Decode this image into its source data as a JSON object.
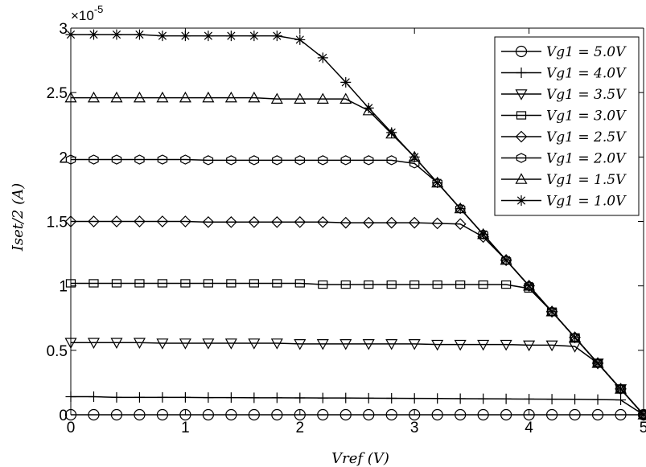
{
  "chart_data": {
    "type": "line",
    "title": "",
    "xlabel": "Vref (V)",
    "ylabel": "Iset/2 (A)",
    "y_multiplier_base": "×10",
    "y_multiplier_exp": "-5",
    "xlim": [
      0,
      5
    ],
    "ylim": [
      0,
      3
    ],
    "xticks": [
      "0",
      "1",
      "2",
      "3",
      "4",
      "5"
    ],
    "yticks": [
      "0",
      "0.5",
      "1",
      "1.5",
      "2",
      "2.5",
      "3"
    ],
    "grid": false,
    "legend_position": "top-right",
    "line_color": "#000000",
    "series": [
      {
        "name": "Vg1 = 5.0V",
        "marker": "circle",
        "x": [
          0,
          0.2,
          0.4,
          0.6,
          0.8,
          1.0,
          1.2,
          1.4,
          1.6,
          1.8,
          2.0,
          2.2,
          2.4,
          2.6,
          2.8,
          3.0,
          3.2,
          3.4,
          3.6,
          3.8,
          4.0,
          4.2,
          4.4,
          4.6,
          4.8,
          5.0
        ],
        "y": [
          0,
          0,
          0,
          0,
          0,
          0,
          0,
          0,
          0,
          0,
          0,
          0,
          0,
          0,
          0,
          0,
          0,
          0,
          0,
          0,
          0,
          0,
          0,
          0,
          0,
          0
        ]
      },
      {
        "name": "Vg1 = 4.0V",
        "marker": "plus",
        "x": [
          0,
          0.2,
          0.4,
          0.6,
          0.8,
          1.0,
          1.2,
          1.4,
          1.6,
          1.8,
          2.0,
          2.2,
          2.4,
          2.6,
          2.8,
          3.0,
          3.2,
          3.4,
          3.6,
          3.8,
          4.0,
          4.2,
          4.4,
          4.6,
          4.8,
          5.0
        ],
        "y": [
          0.14,
          0.14,
          0.135,
          0.135,
          0.135,
          0.135,
          0.133,
          0.133,
          0.132,
          0.132,
          0.131,
          0.13,
          0.13,
          0.129,
          0.128,
          0.127,
          0.126,
          0.125,
          0.124,
          0.123,
          0.122,
          0.121,
          0.12,
          0.118,
          0.115,
          0
        ]
      },
      {
        "name": "Vg1 = 3.5V",
        "marker": "triangle-down",
        "x": [
          0,
          0.2,
          0.4,
          0.6,
          0.8,
          1.0,
          1.2,
          1.4,
          1.6,
          1.8,
          2.0,
          2.2,
          2.4,
          2.6,
          2.8,
          3.0,
          3.2,
          3.4,
          3.6,
          3.8,
          4.0,
          4.2,
          4.4,
          4.6,
          4.8,
          5.0
        ],
        "y": [
          0.56,
          0.56,
          0.56,
          0.56,
          0.555,
          0.555,
          0.555,
          0.555,
          0.555,
          0.555,
          0.55,
          0.55,
          0.55,
          0.55,
          0.55,
          0.55,
          0.545,
          0.545,
          0.545,
          0.545,
          0.54,
          0.54,
          0.53,
          0.4,
          0.2,
          0
        ]
      },
      {
        "name": "Vg1 = 3.0V",
        "marker": "square",
        "x": [
          0,
          0.2,
          0.4,
          0.6,
          0.8,
          1.0,
          1.2,
          1.4,
          1.6,
          1.8,
          2.0,
          2.2,
          2.4,
          2.6,
          2.8,
          3.0,
          3.2,
          3.4,
          3.6,
          3.8,
          4.0,
          4.2,
          4.4,
          4.6,
          4.8,
          5.0
        ],
        "y": [
          1.02,
          1.02,
          1.02,
          1.02,
          1.02,
          1.02,
          1.02,
          1.02,
          1.02,
          1.02,
          1.02,
          1.01,
          1.01,
          1.01,
          1.01,
          1.01,
          1.01,
          1.01,
          1.01,
          1.01,
          0.98,
          0.8,
          0.6,
          0.4,
          0.2,
          0
        ]
      },
      {
        "name": "Vg1 = 2.5V",
        "marker": "diamond",
        "x": [
          0,
          0.2,
          0.4,
          0.6,
          0.8,
          1.0,
          1.2,
          1.4,
          1.6,
          1.8,
          2.0,
          2.2,
          2.4,
          2.6,
          2.8,
          3.0,
          3.2,
          3.4,
          3.6,
          3.8,
          4.0,
          4.2,
          4.4,
          4.6,
          4.8,
          5.0
        ],
        "y": [
          1.5,
          1.5,
          1.5,
          1.5,
          1.5,
          1.5,
          1.495,
          1.495,
          1.495,
          1.495,
          1.495,
          1.495,
          1.49,
          1.49,
          1.49,
          1.49,
          1.485,
          1.48,
          1.38,
          1.2,
          1.0,
          0.8,
          0.6,
          0.4,
          0.2,
          0
        ]
      },
      {
        "name": "Vg1 = 2.0V",
        "marker": "hexagon",
        "x": [
          0,
          0.2,
          0.4,
          0.6,
          0.8,
          1.0,
          1.2,
          1.4,
          1.6,
          1.8,
          2.0,
          2.2,
          2.4,
          2.6,
          2.8,
          3.0,
          3.2,
          3.4,
          3.6,
          3.8,
          4.0,
          4.2,
          4.4,
          4.6,
          4.8,
          5.0
        ],
        "y": [
          1.98,
          1.98,
          1.98,
          1.98,
          1.98,
          1.98,
          1.975,
          1.975,
          1.975,
          1.975,
          1.975,
          1.975,
          1.975,
          1.975,
          1.975,
          1.95,
          1.8,
          1.6,
          1.4,
          1.2,
          1.0,
          0.8,
          0.6,
          0.4,
          0.2,
          0
        ]
      },
      {
        "name": "Vg1 = 1.5V",
        "marker": "triangle-up",
        "x": [
          0,
          0.2,
          0.4,
          0.6,
          0.8,
          1.0,
          1.2,
          1.4,
          1.6,
          1.8,
          2.0,
          2.2,
          2.4,
          2.6,
          2.8,
          3.0,
          3.2,
          3.4,
          3.6,
          3.8,
          4.0,
          4.2,
          4.4,
          4.6,
          4.8,
          5.0
        ],
        "y": [
          2.46,
          2.46,
          2.46,
          2.46,
          2.46,
          2.46,
          2.46,
          2.46,
          2.46,
          2.45,
          2.45,
          2.45,
          2.45,
          2.36,
          2.18,
          2.0,
          1.8,
          1.6,
          1.4,
          1.2,
          1.0,
          0.8,
          0.6,
          0.4,
          0.2,
          0
        ]
      },
      {
        "name": "Vg1 = 1.0V",
        "marker": "asterisk",
        "x": [
          0,
          0.2,
          0.4,
          0.6,
          0.8,
          1.0,
          1.2,
          1.4,
          1.6,
          1.8,
          2.0,
          2.2,
          2.4,
          2.6,
          2.8,
          3.0,
          3.2,
          3.4,
          3.6,
          3.8,
          4.0,
          4.2,
          4.4,
          4.6,
          4.8,
          5.0
        ],
        "y": [
          2.95,
          2.95,
          2.95,
          2.95,
          2.94,
          2.94,
          2.94,
          2.94,
          2.94,
          2.94,
          2.91,
          2.77,
          2.58,
          2.38,
          2.19,
          2.0,
          1.8,
          1.6,
          1.4,
          1.2,
          1.0,
          0.8,
          0.6,
          0.4,
          0.2,
          0
        ]
      }
    ]
  }
}
